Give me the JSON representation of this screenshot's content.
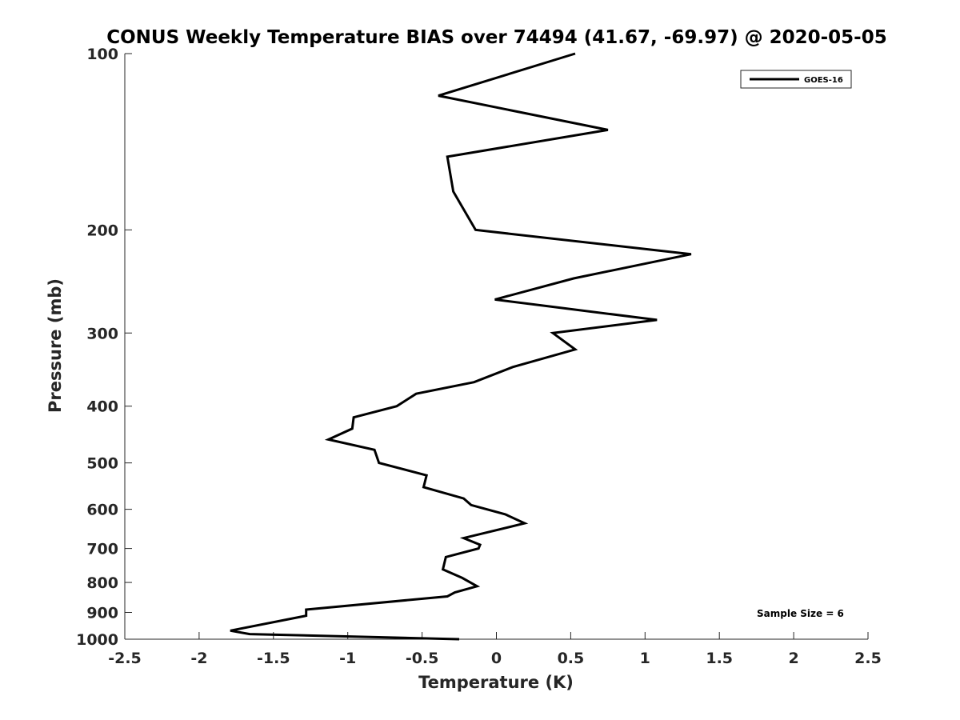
{
  "chart_data": {
    "type": "line",
    "title": "CONUS Weekly Temperature BIAS over 74494 (41.67, -69.97) @ 2020-05-05",
    "xlabel": "Temperature (K)",
    "ylabel": "Pressure (mb)",
    "xlim": [
      -2.5,
      2.5
    ],
    "ylim": [
      1000,
      100
    ],
    "yscale": "log",
    "y_reversed": true,
    "grid": false,
    "legend_position": "top-right",
    "x_ticks": [
      "-2.5",
      "-2",
      "-1.5",
      "-1",
      "-0.5",
      "0",
      "0.5",
      "1",
      "1.5",
      "2",
      "2.5"
    ],
    "y_ticks": [
      "100",
      "200",
      "300",
      "400",
      "500",
      "600",
      "700",
      "800",
      "900",
      "1000"
    ],
    "annotation": "Sample Size = 6",
    "line_color": "#000000",
    "series": [
      {
        "name": "GOES-16",
        "points": [
          [
            0.53,
            100
          ],
          [
            -0.39,
            118
          ],
          [
            0.75,
            135
          ],
          [
            -0.33,
            150
          ],
          [
            -0.29,
            172
          ],
          [
            -0.14,
            200
          ],
          [
            1.31,
            220
          ],
          [
            0.52,
            242
          ],
          [
            -0.01,
            263
          ],
          [
            1.08,
            285
          ],
          [
            0.38,
            300
          ],
          [
            0.53,
            320
          ],
          [
            0.11,
            343
          ],
          [
            -0.15,
            364
          ],
          [
            -0.54,
            381
          ],
          [
            -0.67,
            400
          ],
          [
            -0.96,
            418
          ],
          [
            -0.97,
            437
          ],
          [
            -1.13,
            456
          ],
          [
            -0.82,
            475
          ],
          [
            -0.79,
            500
          ],
          [
            -0.47,
            525
          ],
          [
            -0.49,
            550
          ],
          [
            -0.22,
            575
          ],
          [
            -0.17,
            590
          ],
          [
            0.06,
            612
          ],
          [
            0.19,
            634
          ],
          [
            -0.22,
            672
          ],
          [
            -0.11,
            690
          ],
          [
            -0.12,
            700
          ],
          [
            -0.34,
            724
          ],
          [
            -0.36,
            760
          ],
          [
            -0.23,
            786
          ],
          [
            -0.13,
            812
          ],
          [
            -0.28,
            832
          ],
          [
            -0.33,
            845
          ],
          [
            -1.28,
            890
          ],
          [
            -1.28,
            912
          ],
          [
            -1.79,
            967
          ],
          [
            -1.66,
            980
          ],
          [
            -0.25,
            1000
          ]
        ]
      }
    ]
  }
}
